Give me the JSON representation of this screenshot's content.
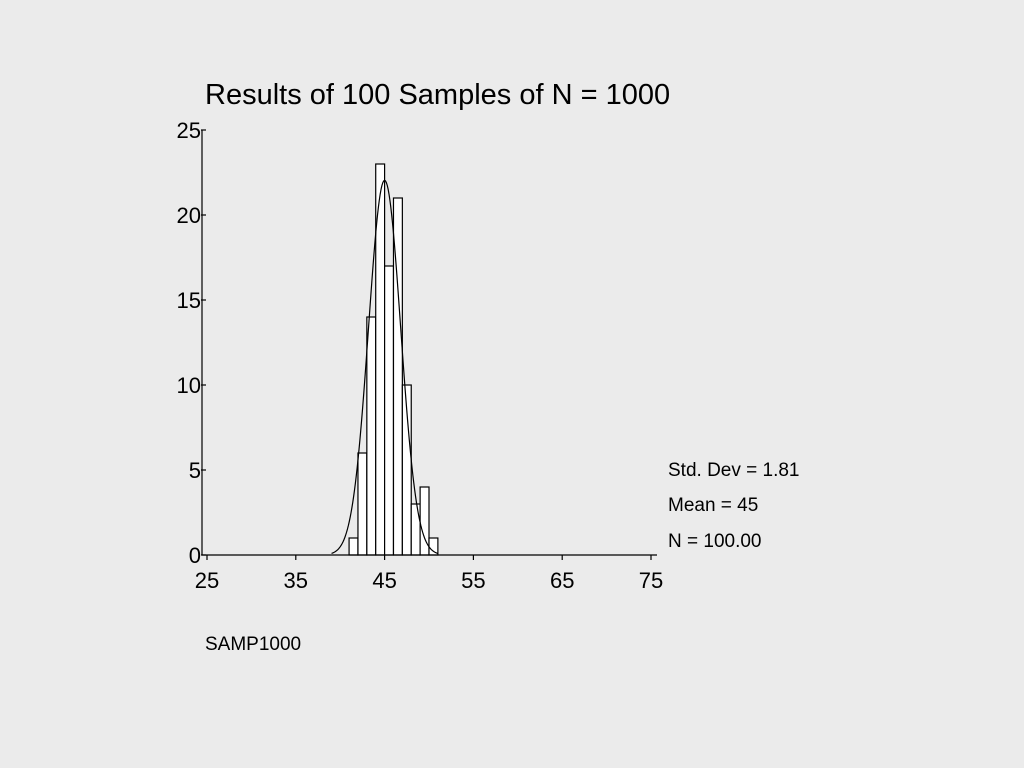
{
  "chart_data": {
    "type": "bar",
    "title": "Results of 100 Samples of N = 1000",
    "xlabel": "SAMP1000",
    "ylabel": "",
    "xlim": [
      25,
      75
    ],
    "ylim": [
      0,
      25
    ],
    "x_ticks": [
      25,
      35,
      45,
      55,
      65,
      75
    ],
    "y_ticks": [
      0,
      5,
      10,
      15,
      20,
      25
    ],
    "bin_width": 1,
    "bins": [
      {
        "x": 41.5,
        "count": 1
      },
      {
        "x": 42.5,
        "count": 6
      },
      {
        "x": 43.5,
        "count": 14
      },
      {
        "x": 44.5,
        "count": 23
      },
      {
        "x": 45.5,
        "count": 17
      },
      {
        "x": 46.5,
        "count": 21
      },
      {
        "x": 47.5,
        "count": 10
      },
      {
        "x": 48.5,
        "count": 3
      },
      {
        "x": 49.5,
        "count": 4
      },
      {
        "x": 50.5,
        "count": 1
      }
    ],
    "normal_curve": {
      "mean": 45,
      "std_dev": 1.81,
      "n": 100
    },
    "grid": false,
    "legend": "none"
  },
  "stats": {
    "std_dev": "Std. Dev = 1.81",
    "mean": "Mean = 45",
    "n": "N = 100.00"
  }
}
